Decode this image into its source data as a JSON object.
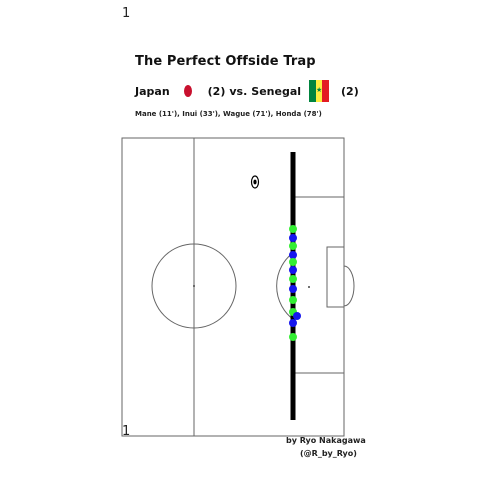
{
  "page_number": "1",
  "title": "The Perfect Offside Trap",
  "match": {
    "home_team": "Japan",
    "home_score": "(2)",
    "versus": "vs.",
    "away_team": "Senegal",
    "away_score": "(2)"
  },
  "scorers": "Mane (11'), Inui (33'), Wague (71'), Honda (78')",
  "credit": {
    "line1": "by Ryo Nakagawa",
    "line2": "(@R_by_Ryo)"
  },
  "colors": {
    "japan_flag": "#c8102e",
    "senegal_flag": [
      "#00853f",
      "#fdef42",
      "#e31b23"
    ],
    "team_green": "#33ee33",
    "team_blue": "#1515ee",
    "offside_line": "#000000",
    "pitch_lines": "#666666"
  },
  "icons": {
    "ball": "soccer-ball-icon"
  },
  "players": {
    "green_count": 7,
    "blue_count": 6
  }
}
